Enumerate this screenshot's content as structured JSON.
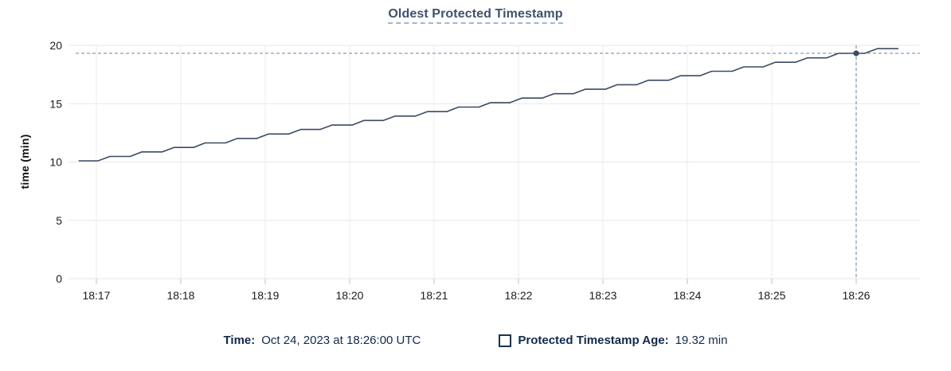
{
  "title": "Oldest Protected Timestamp",
  "legend": {
    "time_label": "Time:",
    "time_value": "Oct 24, 2023 at 18:26:00 UTC",
    "series_label": "Protected Timestamp Age:",
    "series_value": "19.32 min"
  },
  "colors": {
    "line": "#3c4a63",
    "marker": "#3c4a63",
    "crosshair": "#8ea9bd",
    "grid_horizontal": "#ebebeb",
    "grid_vertical": "#f0f0f0",
    "axis_tick": "#d0d0d0",
    "tick_text": "#1c1c1c",
    "title_text": "#3e526b",
    "title_underline": "#a3b6d0",
    "legend_text": "#13294b"
  },
  "chart_data": {
    "type": "line",
    "title": "Oldest Protected Timestamp",
    "xlabel": "",
    "ylabel": "time (min)",
    "ylim": [
      0,
      20
    ],
    "grid": true,
    "legend_position": "bottom",
    "yticks": [
      {
        "v": 0,
        "label": "0"
      },
      {
        "v": 5,
        "label": "5"
      },
      {
        "v": 10,
        "label": "10"
      },
      {
        "v": 15,
        "label": "15"
      },
      {
        "v": 20,
        "label": "20"
      }
    ],
    "xticks": [
      {
        "t": 17,
        "label": "18:17"
      },
      {
        "t": 18,
        "label": "18:18"
      },
      {
        "t": 19,
        "label": "18:19"
      },
      {
        "t": 20,
        "label": "18:20"
      },
      {
        "t": 21,
        "label": "18:21"
      },
      {
        "t": 22,
        "label": "18:22"
      },
      {
        "t": 23,
        "label": "18:23"
      },
      {
        "t": 24,
        "label": "18:24"
      },
      {
        "t": 25,
        "label": "18:25"
      },
      {
        "t": 26,
        "label": "18:26"
      }
    ],
    "x_domain_minutes_after_1800": [
      16.755,
      26.755
    ],
    "series": [
      {
        "name": "Protected Timestamp Age",
        "unit": "min",
        "points": [
          [
            16.79,
            10.1
          ],
          [
            17.02,
            10.1
          ],
          [
            17.16,
            10.48
          ],
          [
            17.4,
            10.48
          ],
          [
            17.54,
            10.87
          ],
          [
            17.78,
            10.87
          ],
          [
            17.92,
            11.25
          ],
          [
            18.15,
            11.25
          ],
          [
            18.29,
            11.64
          ],
          [
            18.53,
            11.64
          ],
          [
            18.67,
            12.02
          ],
          [
            18.9,
            12.02
          ],
          [
            19.04,
            12.4
          ],
          [
            19.28,
            12.4
          ],
          [
            19.42,
            12.79
          ],
          [
            19.65,
            12.79
          ],
          [
            19.79,
            13.17
          ],
          [
            20.03,
            13.17
          ],
          [
            20.17,
            13.56
          ],
          [
            20.4,
            13.56
          ],
          [
            20.54,
            13.94
          ],
          [
            20.78,
            13.94
          ],
          [
            20.92,
            14.32
          ],
          [
            21.15,
            14.32
          ],
          [
            21.29,
            14.71
          ],
          [
            21.53,
            14.71
          ],
          [
            21.67,
            15.09
          ],
          [
            21.9,
            15.09
          ],
          [
            22.04,
            15.48
          ],
          [
            22.28,
            15.48
          ],
          [
            22.42,
            15.86
          ],
          [
            22.65,
            15.86
          ],
          [
            22.79,
            16.24
          ],
          [
            23.03,
            16.24
          ],
          [
            23.17,
            16.63
          ],
          [
            23.4,
            16.63
          ],
          [
            23.54,
            17.01
          ],
          [
            23.78,
            17.01
          ],
          [
            23.92,
            17.4
          ],
          [
            24.15,
            17.4
          ],
          [
            24.29,
            17.78
          ],
          [
            24.53,
            17.78
          ],
          [
            24.67,
            18.16
          ],
          [
            24.9,
            18.16
          ],
          [
            25.04,
            18.55
          ],
          [
            25.28,
            18.55
          ],
          [
            25.42,
            18.93
          ],
          [
            25.65,
            18.93
          ],
          [
            25.79,
            19.32
          ],
          [
            26.1,
            19.32
          ],
          [
            26.25,
            19.72
          ],
          [
            26.5,
            19.72
          ]
        ]
      }
    ],
    "crosshair": {
      "t": 26.0,
      "time_label": "18:26",
      "value": 19.32,
      "value_label": "19.32 min"
    }
  }
}
